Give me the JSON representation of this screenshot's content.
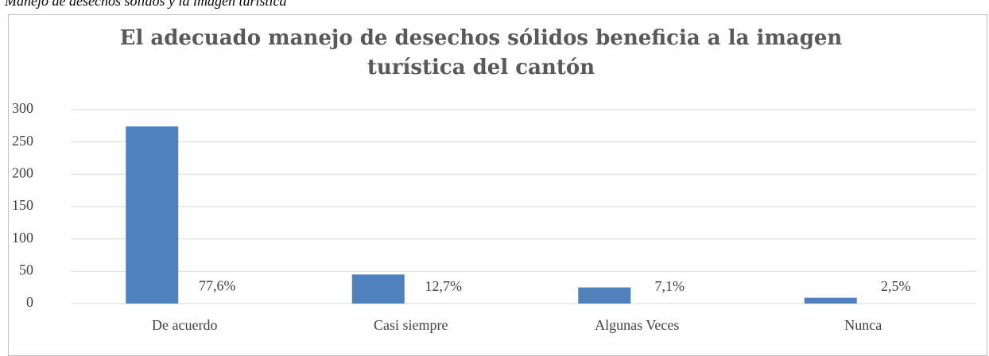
{
  "caption": "Manejo de desechos sólidos y la imagen turística",
  "chart_data": {
    "type": "bar",
    "title": "El adecuado manejo de desechos sólidos beneficia a la imagen turística del cantón",
    "categories": [
      "De acuerdo",
      "Casi siempre",
      "Algunas Veces",
      "Nunca"
    ],
    "series": [
      {
        "color": "#4f81bd",
        "values": [
          274,
          45,
          25,
          9
        ]
      },
      {
        "values": [
          0.776,
          0.127,
          0.071,
          0.025
        ],
        "value_labels": [
          "77,6%",
          "12,7%",
          "7,1%",
          "2,5%"
        ]
      }
    ],
    "ylim": [
      0,
      300
    ],
    "yticks": [
      0,
      50,
      100,
      150,
      200,
      250,
      300
    ],
    "grid": true
  }
}
